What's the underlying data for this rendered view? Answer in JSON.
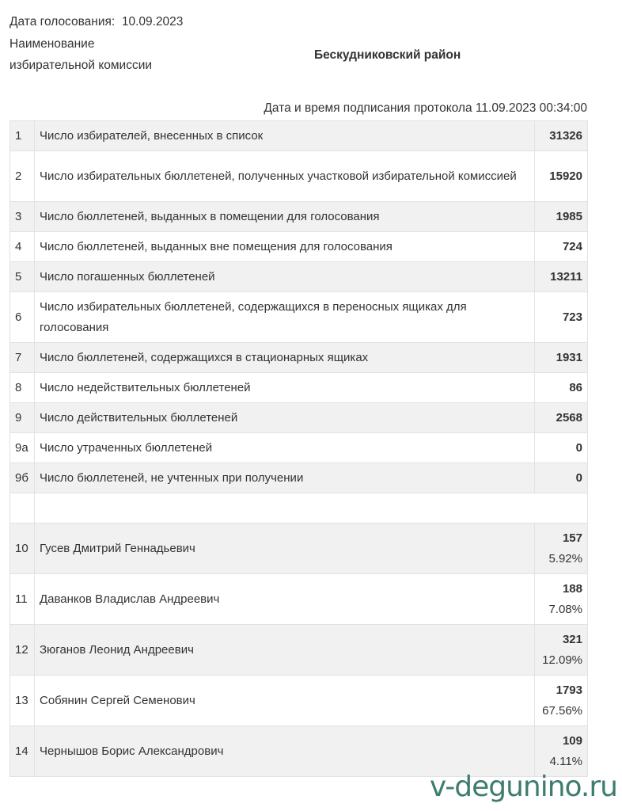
{
  "header": {
    "vote_date_label": "Дата голосования:",
    "vote_date": "10.09.2023",
    "commission_label_1": "Наименование",
    "commission_label_2": "избирательной комиссии",
    "commission_name": "Бескудниковский район",
    "signed_label": "Дата и время подписания протокола",
    "signed_datetime": "11.09.2023 00:34:00"
  },
  "rows": [
    {
      "num": "1",
      "label": "Число избирателей, внесенных в список",
      "value": "31326"
    },
    {
      "num": "2",
      "label": "Число избирательных бюллетеней, полученных участковой избирательной комиссией",
      "value": "15920"
    },
    {
      "num": "3",
      "label": "Число бюллетеней, выданных в помещении для голосования",
      "value": "1985"
    },
    {
      "num": "4",
      "label": "Число бюллетеней, выданных вне помещения для голосования",
      "value": "724"
    },
    {
      "num": "5",
      "label": "Число погашенных бюллетеней",
      "value": "13211"
    },
    {
      "num": "6",
      "label": "Число избирательных бюллетеней, содержащихся в переносных ящиках для голосования",
      "value": "723"
    },
    {
      "num": "7",
      "label": "Число бюллетеней, содержащихся в стационарных ящиках",
      "value": "1931"
    },
    {
      "num": "8",
      "label": "Число недействительных бюллетеней",
      "value": "86"
    },
    {
      "num": "9",
      "label": "Число действительных бюллетеней",
      "value": "2568"
    },
    {
      "num": "9а",
      "label": "Число утраченных бюллетеней",
      "value": "0"
    },
    {
      "num": "9б",
      "label": "Число бюллетеней, не учтенных при получении",
      "value": "0"
    }
  ],
  "candidates": [
    {
      "num": "10",
      "name": "Гусев Дмитрий Геннадьевич",
      "votes": "157",
      "percent": "5.92%"
    },
    {
      "num": "11",
      "name": "Даванков Владислав Андреевич",
      "votes": "188",
      "percent": "7.08%"
    },
    {
      "num": "12",
      "name": "Зюганов Леонид Андреевич",
      "votes": "321",
      "percent": "12.09%"
    },
    {
      "num": "13",
      "name": "Собянин Сергей Семенович",
      "votes": "1793",
      "percent": "67.56%"
    },
    {
      "num": "14",
      "name": "Чернышов Борис Александрович",
      "votes": "109",
      "percent": "4.11%"
    }
  ],
  "watermark": "v-degunino.ru"
}
